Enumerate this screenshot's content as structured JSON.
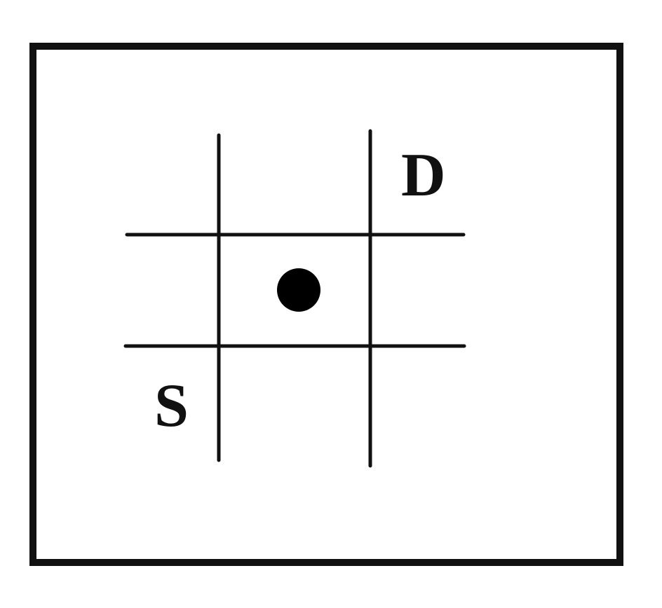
{
  "diagram": {
    "labels": {
      "top_right": "D",
      "bottom_left": "S"
    },
    "colors": {
      "background": "#ffffff",
      "line": "#111111",
      "dot": "#000000"
    },
    "grid": {
      "vertical_lines": 2,
      "horizontal_lines": 2
    },
    "marker": {
      "type": "filled-dot",
      "cell": "center"
    }
  }
}
